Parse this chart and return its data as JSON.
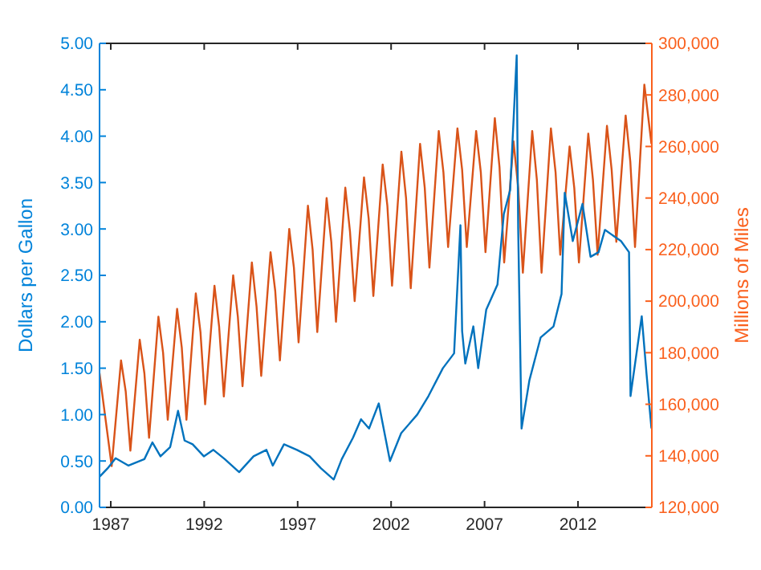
{
  "chart_data": {
    "type": "line",
    "ylabel": "Dollars per Gallon",
    "y2label": "Millions of Miles",
    "xlim": [
      1986.4,
      2015.95
    ],
    "xticks": [
      1987,
      1992,
      1997,
      2002,
      2007,
      2012
    ],
    "ylim": [
      0,
      5
    ],
    "yticks": [
      {
        "value": 0,
        "label": "0.00"
      },
      {
        "value": 0.5,
        "label": "0.50"
      },
      {
        "value": 1,
        "label": "1.00"
      },
      {
        "value": 1.5,
        "label": "1.50"
      },
      {
        "value": 2,
        "label": "2.00"
      },
      {
        "value": 2.5,
        "label": "2.50"
      },
      {
        "value": 3,
        "label": "3.00"
      },
      {
        "value": 3.5,
        "label": "3.50"
      },
      {
        "value": 4,
        "label": "4.00"
      },
      {
        "value": 4.5,
        "label": "4.50"
      },
      {
        "value": 5,
        "label": "5.00"
      }
    ],
    "y2lim": [
      120000,
      300000
    ],
    "y2ticks": [
      {
        "value": 120000,
        "label": "120,000"
      },
      {
        "value": 140000,
        "label": "140,000"
      },
      {
        "value": 160000,
        "label": "160,000"
      },
      {
        "value": 180000,
        "label": "180,000"
      },
      {
        "value": 200000,
        "label": "200,000"
      },
      {
        "value": 220000,
        "label": "220,000"
      },
      {
        "value": 240000,
        "label": "240,000"
      },
      {
        "value": 260000,
        "label": "260,000"
      },
      {
        "value": 280000,
        "label": "280,000"
      },
      {
        "value": 300000,
        "label": "300,000"
      }
    ],
    "grid": false,
    "line_style": "solid",
    "marker": "none",
    "series": [
      {
        "color": "#d95319",
        "axis": "y2",
        "x": [
          1986.4,
          1987.05,
          1987.55,
          1987.8,
          1988.05,
          1988.55,
          1988.8,
          1989.05,
          1989.55,
          1989.8,
          1990.05,
          1990.55,
          1990.8,
          1991.05,
          1991.55,
          1991.8,
          1992.05,
          1992.55,
          1992.8,
          1993.05,
          1993.55,
          1993.8,
          1994.05,
          1994.55,
          1994.8,
          1995.05,
          1995.55,
          1995.8,
          1996.05,
          1996.55,
          1996.8,
          1997.05,
          1997.55,
          1997.8,
          1998.05,
          1998.55,
          1998.8,
          1999.05,
          1999.55,
          1999.8,
          2000.05,
          2000.55,
          2000.8,
          2001.05,
          2001.55,
          2001.8,
          2002.05,
          2002.55,
          2002.8,
          2003.05,
          2003.55,
          2003.8,
          2004.05,
          2004.55,
          2004.8,
          2005.05,
          2005.55,
          2005.8,
          2006.05,
          2006.55,
          2006.8,
          2007.05,
          2007.55,
          2007.8,
          2008.05,
          2008.55,
          2008.8,
          2009.05,
          2009.55,
          2009.8,
          2010.05,
          2010.55,
          2010.8,
          2011.05,
          2011.55,
          2011.8,
          2012.05,
          2012.55,
          2012.8,
          2013.05,
          2013.55,
          2013.8,
          2014.05,
          2014.55,
          2014.8,
          2015.05,
          2015.55,
          2015.93
        ],
        "values": [
          172000,
          136000,
          177000,
          165000,
          142000,
          185000,
          172000,
          147000,
          194000,
          180000,
          154000,
          197000,
          182000,
          154000,
          203000,
          188000,
          160000,
          206000,
          190000,
          163000,
          210000,
          194000,
          167000,
          215000,
          198000,
          171000,
          219000,
          204000,
          177000,
          228000,
          213000,
          184000,
          237000,
          220000,
          188000,
          240000,
          223000,
          192000,
          244000,
          227000,
          200000,
          248000,
          232000,
          202000,
          253000,
          237000,
          206000,
          258000,
          240000,
          205000,
          261000,
          244000,
          213000,
          266000,
          250000,
          221000,
          267000,
          251000,
          221000,
          266000,
          250000,
          219000,
          271000,
          252000,
          215000,
          262000,
          244000,
          211000,
          266000,
          247000,
          211000,
          267000,
          250000,
          218000,
          260000,
          244000,
          215000,
          265000,
          247000,
          218000,
          268000,
          251000,
          223000,
          272000,
          254000,
          221000,
          284000,
          261000
        ]
      },
      {
        "color": "#0072bd",
        "axis": "y",
        "x": [
          1986.4,
          1986.83,
          1987.26,
          1987.95,
          1988.8,
          1989.23,
          1989.66,
          1990.18,
          1990.6,
          1990.95,
          1991.38,
          1991.98,
          1992.49,
          1993.1,
          1993.87,
          1994.64,
          1995.33,
          1995.67,
          1996.27,
          1996.96,
          1997.64,
          1998.25,
          1998.93,
          1999.36,
          1999.96,
          2000.39,
          2000.82,
          2001.34,
          2001.94,
          2002.54,
          2003.4,
          2004.0,
          2004.77,
          2005.37,
          2005.71,
          2005.8,
          2005.97,
          2006.4,
          2006.66,
          2007.09,
          2007.69,
          2008.03,
          2008.37,
          2008.72,
          2008.8,
          2008.98,
          2009.4,
          2010.0,
          2010.69,
          2011.12,
          2011.29,
          2011.72,
          2012.24,
          2012.67,
          2013.1,
          2013.44,
          2014.3,
          2014.73,
          2014.81,
          2015.41,
          2015.67,
          2015.93
        ],
        "values": [
          0.33,
          0.42,
          0.53,
          0.45,
          0.52,
          0.7,
          0.55,
          0.65,
          1.04,
          0.72,
          0.68,
          0.55,
          0.62,
          0.52,
          0.38,
          0.55,
          0.62,
          0.45,
          0.68,
          0.62,
          0.55,
          0.42,
          0.3,
          0.52,
          0.75,
          0.95,
          0.85,
          1.12,
          0.5,
          0.8,
          1.0,
          1.2,
          1.5,
          1.66,
          3.04,
          1.9,
          1.55,
          1.95,
          1.5,
          2.13,
          2.4,
          3.16,
          3.42,
          4.87,
          3.0,
          0.85,
          1.37,
          1.83,
          1.95,
          2.3,
          3.39,
          2.87,
          3.27,
          2.7,
          2.75,
          2.99,
          2.87,
          2.75,
          1.2,
          2.06,
          1.43,
          0.85
        ]
      }
    ]
  }
}
